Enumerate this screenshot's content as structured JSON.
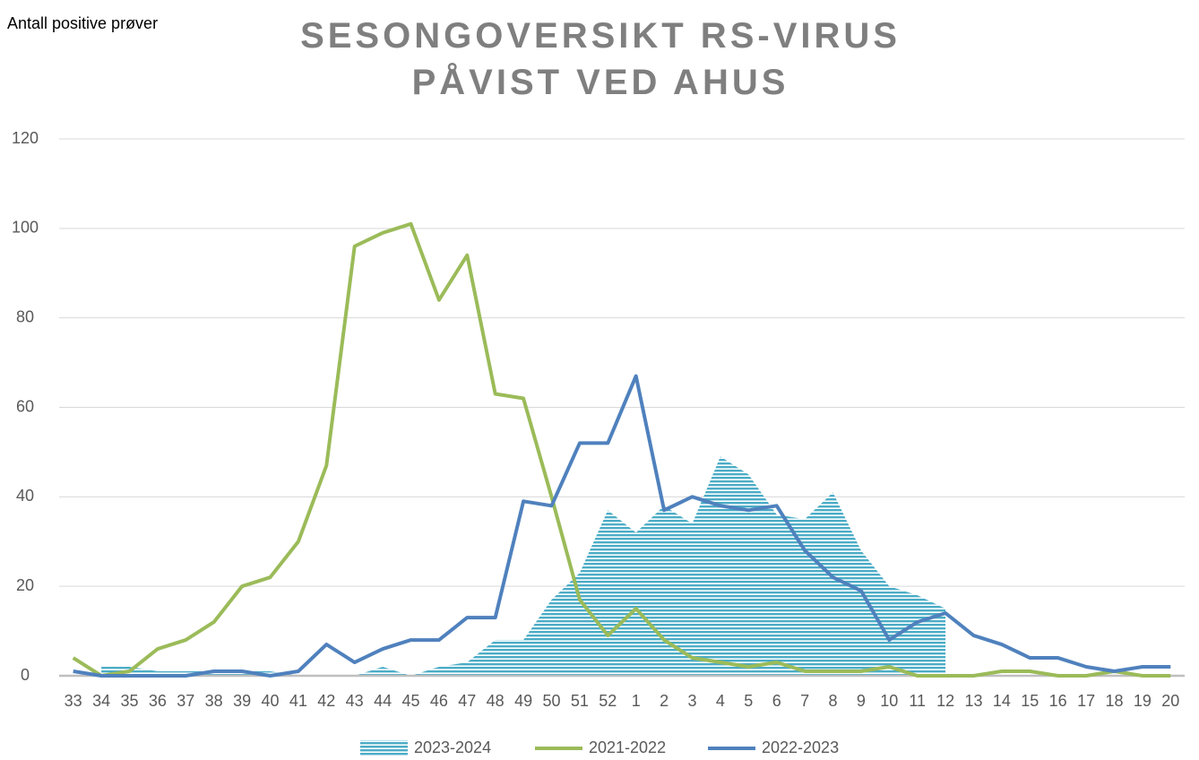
{
  "chart_data": {
    "type": "line",
    "title": "SESONGOVERSIKT RS-VIRUS PÅVIST VED AHUS",
    "y_label": "Antall positive prøver",
    "categories": [
      "33",
      "34",
      "35",
      "36",
      "37",
      "38",
      "39",
      "40",
      "41",
      "42",
      "43",
      "44",
      "45",
      "46",
      "47",
      "48",
      "49",
      "50",
      "51",
      "52",
      "1",
      "2",
      "3",
      "4",
      "5",
      "6",
      "7",
      "8",
      "9",
      "10",
      "11",
      "12",
      "13",
      "14",
      "15",
      "16",
      "17",
      "18",
      "19",
      "20"
    ],
    "series": [
      {
        "name": "2023-2024",
        "kind": "area",
        "color": "#4bacc6",
        "values": [
          null,
          2,
          2,
          1,
          1,
          1,
          1,
          1,
          0,
          0,
          0,
          2,
          0,
          2,
          3,
          8,
          8,
          17,
          23,
          37,
          32,
          38,
          34,
          49,
          45,
          36,
          35,
          41,
          28,
          20,
          18,
          15,
          null,
          null,
          null,
          null,
          null,
          null,
          null,
          null
        ]
      },
      {
        "name": "2021-2022",
        "kind": "line",
        "color": "#9bbb59",
        "values": [
          4,
          0,
          1,
          6,
          8,
          12,
          20,
          22,
          30,
          47,
          96,
          99,
          101,
          84,
          94,
          63,
          62,
          40,
          17,
          9,
          15,
          8,
          4,
          3,
          2,
          3,
          1,
          1,
          1,
          2,
          0,
          0,
          0,
          1,
          1,
          0,
          0,
          1,
          0,
          0
        ]
      },
      {
        "name": "2022-2023",
        "kind": "line",
        "color": "#4f81bd",
        "values": [
          1,
          0,
          0,
          0,
          0,
          1,
          1,
          0,
          1,
          7,
          3,
          6,
          8,
          8,
          13,
          13,
          39,
          38,
          52,
          52,
          67,
          37,
          40,
          38,
          37,
          38,
          28,
          22,
          19,
          8,
          12,
          14,
          9,
          7,
          4,
          4,
          2,
          1,
          2,
          2
        ]
      }
    ],
    "ylim": [
      0,
      120
    ],
    "yticks": [
      0,
      20,
      40,
      60,
      80,
      100,
      120
    ],
    "grid": true,
    "legend": "bottom"
  }
}
